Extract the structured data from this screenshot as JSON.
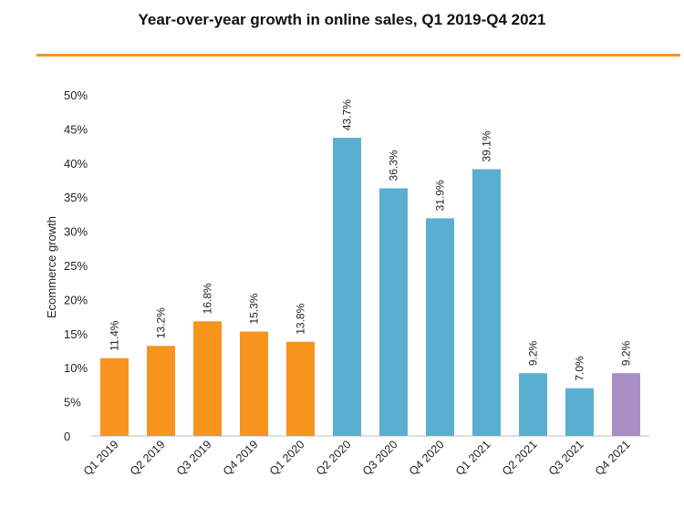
{
  "chart_data": {
    "type": "bar",
    "title": "Year-over-year growth in online sales, Q1 2019-Q4 2021",
    "xlabel": "",
    "ylabel": "Ecommerce growth",
    "ylim": [
      0,
      50
    ],
    "yticks": [
      "0",
      "5%",
      "10%",
      "15%",
      "20%",
      "25%",
      "30%",
      "35%",
      "40%",
      "45%",
      "50%"
    ],
    "categories": [
      "Q1 2019",
      "Q2 2019",
      "Q3 2019",
      "Q4 2019",
      "Q1 2020",
      "Q2 2020",
      "Q3 2020",
      "Q4 2020",
      "Q1 2021",
      "Q2 2021",
      "Q3 2021",
      "Q4 2021"
    ],
    "values": [
      11.4,
      13.2,
      16.8,
      15.3,
      13.8,
      43.7,
      36.3,
      31.9,
      39.1,
      9.2,
      7.0,
      9.2
    ],
    "data_labels": [
      "11.4%",
      "13.2%",
      "16.8%",
      "15.3%",
      "13.8%",
      "43.7%",
      "36.3%",
      "31.9%",
      "39.1%",
      "9.2%",
      "7.0%",
      "9.2%"
    ],
    "colors": [
      "#f7941d",
      "#f7941d",
      "#f7941d",
      "#f7941d",
      "#f7941d",
      "#5aafd1",
      "#5aafd1",
      "#5aafd1",
      "#5aafd1",
      "#5aafd1",
      "#5aafd1",
      "#a98ec4"
    ],
    "grid": false,
    "legend": false
  }
}
